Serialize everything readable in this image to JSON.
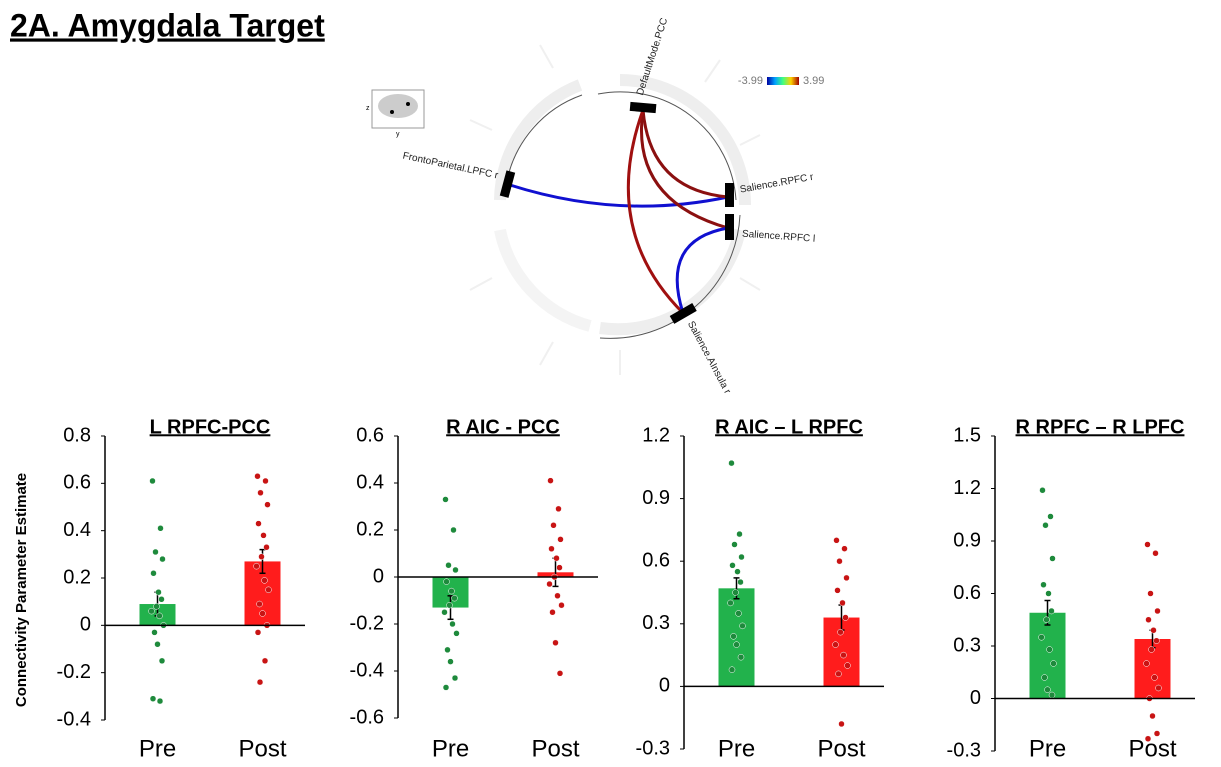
{
  "title": "2A. Amygdala Target",
  "ylabel": "Connectivity Parameter Estimate",
  "connectogram": {
    "nodes": [
      "DefaultMode.PCC",
      "FrontoParietal.LPFC r",
      "Salience.RPFC r",
      "Salience.RPFC l",
      "Salience.AInsula r"
    ],
    "colorbar": {
      "min": -3.99,
      "max": 3.99
    },
    "icon_axes": [
      "z",
      "y"
    ]
  },
  "chart_data": [
    {
      "type": "bar",
      "title": "L RPFC-PCC",
      "categories": [
        "Pre",
        "Post"
      ],
      "values": [
        0.09,
        0.27
      ],
      "errors": [
        0.05,
        0.05
      ],
      "colors": [
        "#22b24c",
        "#ff1c1c"
      ],
      "point_colors": [
        "#1e8a3c",
        "#c81414"
      ],
      "points": [
        [
          0.61,
          0.41,
          0.31,
          0.28,
          0.22,
          0.14,
          0.11,
          0.08,
          0.06,
          0.04,
          0.0,
          -0.03,
          -0.08,
          -0.15,
          -0.31,
          -0.32
        ],
        [
          0.63,
          0.61,
          0.56,
          0.51,
          0.43,
          0.38,
          0.33,
          0.29,
          0.25,
          0.19,
          0.15,
          0.09,
          0.05,
          0.0,
          -0.03,
          -0.15,
          -0.24
        ]
      ],
      "ylim": [
        -0.4,
        0.8
      ],
      "yticks": [
        -0.4,
        -0.2,
        0,
        0.2,
        0.4,
        0.6,
        0.8
      ]
    },
    {
      "type": "bar",
      "title": "R AIC - PCC",
      "categories": [
        "Pre",
        "Post"
      ],
      "values": [
        -0.13,
        0.02
      ],
      "errors": [
        0.05,
        0.06
      ],
      "colors": [
        "#22b24c",
        "#ff1c1c"
      ],
      "point_colors": [
        "#1e8a3c",
        "#c81414"
      ],
      "points": [
        [
          0.33,
          0.2,
          0.05,
          0.03,
          -0.02,
          -0.06,
          -0.09,
          -0.12,
          -0.15,
          -0.2,
          -0.24,
          -0.31,
          -0.36,
          -0.43,
          -0.47
        ],
        [
          0.41,
          0.29,
          0.22,
          0.16,
          0.12,
          0.08,
          0.04,
          0.0,
          -0.03,
          -0.08,
          -0.12,
          -0.15,
          -0.28,
          -0.41
        ]
      ],
      "ylim": [
        -0.6,
        0.6
      ],
      "yticks": [
        -0.6,
        -0.4,
        -0.2,
        0,
        0.2,
        0.4,
        0.6
      ]
    },
    {
      "type": "bar",
      "title": "R AIC – L RPFC",
      "categories": [
        "Pre",
        "Post"
      ],
      "values": [
        0.47,
        0.33
      ],
      "errors": [
        0.05,
        0.06
      ],
      "colors": [
        "#22b24c",
        "#ff1c1c"
      ],
      "point_colors": [
        "#1e8a3c",
        "#c81414"
      ],
      "points": [
        [
          1.07,
          0.73,
          0.68,
          0.62,
          0.58,
          0.55,
          0.5,
          0.45,
          0.4,
          0.35,
          0.29,
          0.24,
          0.2,
          0.14,
          0.08
        ],
        [
          0.7,
          0.66,
          0.6,
          0.52,
          0.46,
          0.4,
          0.33,
          0.26,
          0.2,
          0.15,
          0.1,
          0.06,
          -0.18
        ]
      ],
      "ylim": [
        -0.3,
        1.2
      ],
      "yticks": [
        -0.3,
        0,
        0.3,
        0.6,
        0.9,
        1.2
      ]
    },
    {
      "type": "bar",
      "title": "R RPFC – R LPFC",
      "categories": [
        "Pre",
        "Post"
      ],
      "values": [
        0.49,
        0.34
      ],
      "errors": [
        0.07,
        0.05
      ],
      "colors": [
        "#22b24c",
        "#ff1c1c"
      ],
      "point_colors": [
        "#1e8a3c",
        "#c81414"
      ],
      "points": [
        [
          1.19,
          1.04,
          0.99,
          0.8,
          0.65,
          0.6,
          0.5,
          0.45,
          0.35,
          0.28,
          0.2,
          0.12,
          0.05,
          0.02
        ],
        [
          0.88,
          0.83,
          0.6,
          0.5,
          0.45,
          0.39,
          0.33,
          0.28,
          0.2,
          0.12,
          0.06,
          0.0,
          -0.1,
          -0.2,
          -0.23
        ]
      ],
      "ylim": [
        -0.3,
        1.5
      ],
      "yticks": [
        -0.3,
        0,
        0.3,
        0.6,
        0.9,
        1.2,
        1.5
      ]
    }
  ]
}
